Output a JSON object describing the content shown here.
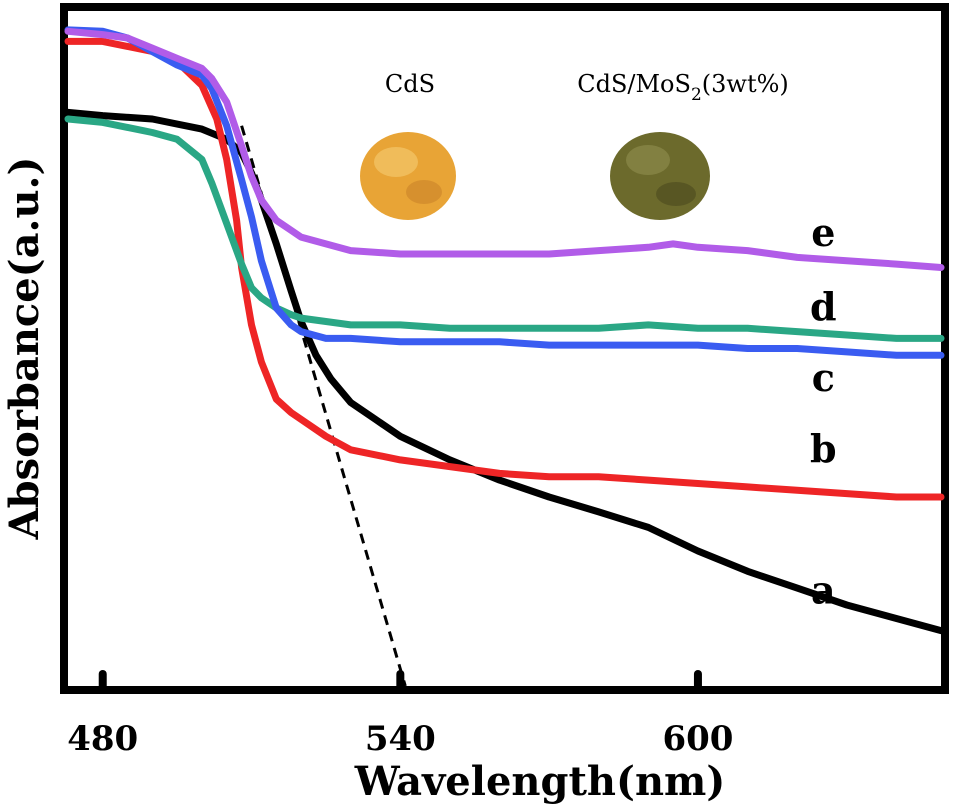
{
  "chart_data": {
    "type": "line",
    "xlabel": "Wavelength(nm)",
    "ylabel": "Absorbance(a.u.)",
    "xlim": [
      473,
      649
    ],
    "ylim": [
      0,
      1
    ],
    "xticks": [
      480,
      540,
      600
    ],
    "xtick_labels": [
      "480",
      "540",
      "600"
    ],
    "yticks": [],
    "grid": false,
    "series": [
      {
        "name": "a",
        "color": "#000000",
        "x": [
          473,
          480,
          490,
          500,
          505,
          508,
          510,
          512,
          515,
          518,
          520,
          523,
          526,
          530,
          535,
          540,
          550,
          560,
          570,
          580,
          590,
          600,
          610,
          620,
          630,
          640,
          649
        ],
        "y": [
          0.85,
          0.845,
          0.84,
          0.825,
          0.81,
          0.79,
          0.76,
          0.72,
          0.655,
          0.585,
          0.54,
          0.49,
          0.455,
          0.42,
          0.395,
          0.37,
          0.335,
          0.305,
          0.28,
          0.258,
          0.235,
          0.2,
          0.17,
          0.145,
          0.12,
          0.1,
          0.082
        ]
      },
      {
        "name": "b",
        "color": "#ee2526",
        "x": [
          473,
          480,
          490,
          495,
          500,
          503,
          505,
          507,
          508,
          510,
          512,
          515,
          518,
          520,
          525,
          530,
          540,
          550,
          560,
          570,
          580,
          590,
          600,
          610,
          620,
          630,
          640,
          649
        ],
        "y": [
          0.955,
          0.955,
          0.94,
          0.925,
          0.89,
          0.84,
          0.78,
          0.69,
          0.62,
          0.535,
          0.48,
          0.425,
          0.405,
          0.395,
          0.37,
          0.35,
          0.335,
          0.325,
          0.315,
          0.31,
          0.31,
          0.305,
          0.3,
          0.295,
          0.29,
          0.285,
          0.28,
          0.28
        ]
      },
      {
        "name": "c",
        "color": "#3a5cf1",
        "x": [
          473,
          480,
          485,
          490,
          495,
          500,
          502,
          505,
          508,
          510,
          512,
          515,
          518,
          520,
          525,
          530,
          540,
          550,
          560,
          570,
          580,
          590,
          600,
          610,
          620,
          630,
          640,
          649
        ],
        "y": [
          0.972,
          0.97,
          0.96,
          0.94,
          0.92,
          0.905,
          0.885,
          0.83,
          0.75,
          0.695,
          0.63,
          0.56,
          0.535,
          0.525,
          0.515,
          0.515,
          0.51,
          0.51,
          0.51,
          0.505,
          0.505,
          0.505,
          0.505,
          0.5,
          0.5,
          0.495,
          0.49,
          0.49
        ]
      },
      {
        "name": "d",
        "color": "#2aa785",
        "x": [
          473,
          480,
          490,
          495,
          500,
          502,
          505,
          508,
          510,
          512,
          515,
          518,
          520,
          525,
          530,
          540,
          550,
          560,
          570,
          580,
          590,
          600,
          610,
          620,
          630,
          640,
          649
        ],
        "y": [
          0.84,
          0.835,
          0.82,
          0.81,
          0.78,
          0.745,
          0.685,
          0.625,
          0.59,
          0.575,
          0.56,
          0.55,
          0.545,
          0.54,
          0.535,
          0.535,
          0.53,
          0.53,
          0.53,
          0.53,
          0.535,
          0.53,
          0.53,
          0.525,
          0.52,
          0.515,
          0.515
        ]
      },
      {
        "name": "e",
        "color": "#b15ce8",
        "x": [
          473,
          480,
          485,
          490,
          495,
          500,
          502,
          505,
          508,
          510,
          512,
          515,
          518,
          520,
          525,
          530,
          540,
          550,
          560,
          570,
          580,
          590,
          595,
          600,
          610,
          620,
          630,
          640,
          649
        ],
        "y": [
          0.97,
          0.965,
          0.96,
          0.945,
          0.93,
          0.915,
          0.9,
          0.865,
          0.8,
          0.755,
          0.72,
          0.69,
          0.675,
          0.665,
          0.655,
          0.645,
          0.64,
          0.64,
          0.64,
          0.64,
          0.645,
          0.65,
          0.655,
          0.65,
          0.645,
          0.635,
          0.63,
          0.625,
          0.62
        ]
      }
    ],
    "tangent_line": {
      "color": "#000000",
      "style": "dashed",
      "x": [
        508,
        541
      ],
      "y": [
        0.83,
        0.0
      ]
    },
    "annotations": [
      {
        "text": "a",
        "x": 641,
        "y": 0.14
      },
      {
        "text": "b",
        "x": 641,
        "y": 0.35
      },
      {
        "text": "c",
        "x": 641,
        "y": 0.455
      },
      {
        "text": "d",
        "x": 641,
        "y": 0.56
      },
      {
        "text": "e",
        "x": 641,
        "y": 0.67
      }
    ],
    "inset_photos": [
      {
        "label": "CdS",
        "color": "#e8a436"
      },
      {
        "label_main": "CdS/MoS",
        "label_sub": "2",
        "label_tail": "(3wt%)",
        "color": "#6c6a2c"
      }
    ]
  }
}
